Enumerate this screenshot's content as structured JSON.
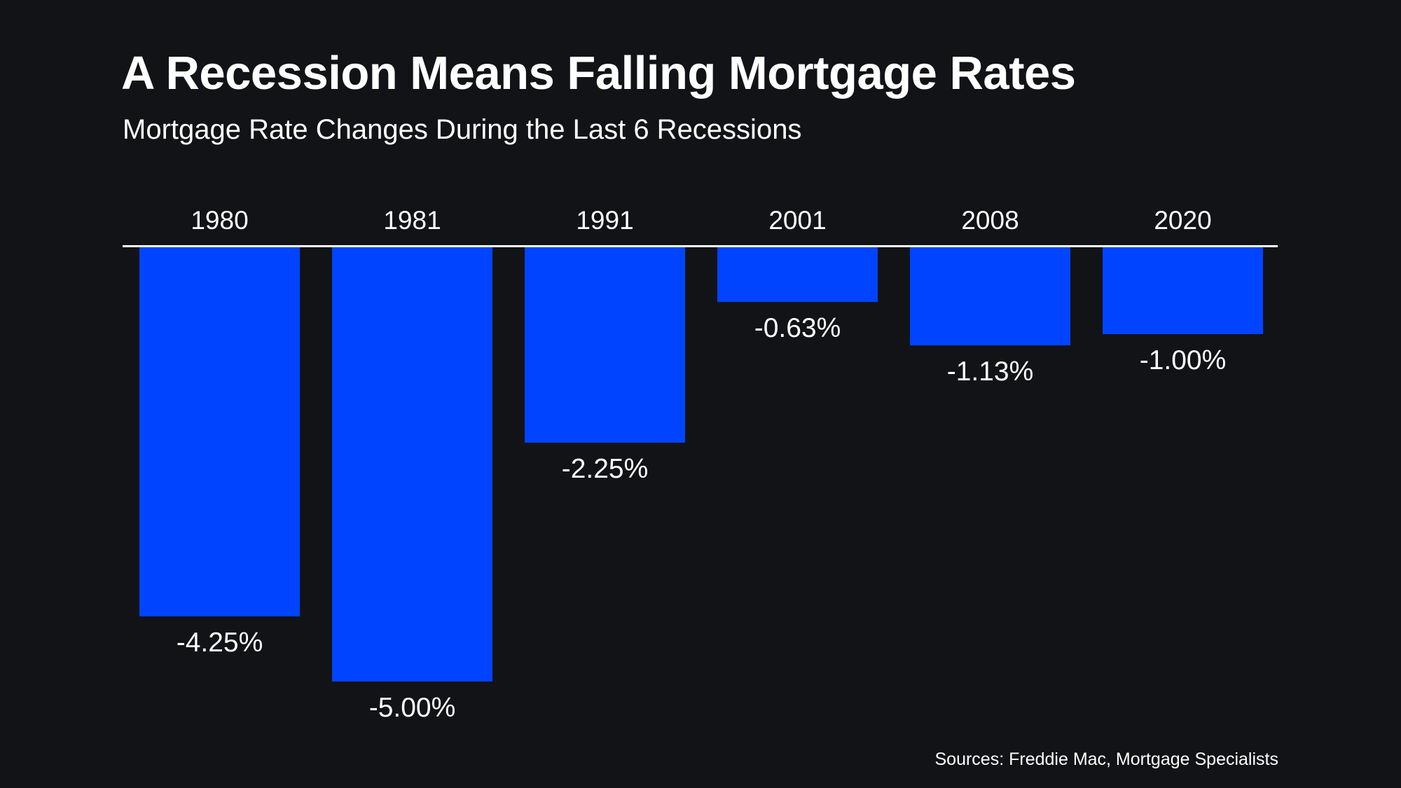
{
  "chart_data": {
    "type": "bar",
    "orientation": "vertical-negative",
    "title": "A Recession Means Falling Mortgage Rates",
    "subtitle": "Mortgage Rate Changes During the Last 6 Recessions",
    "categories": [
      "1980",
      "1981",
      "1991",
      "2001",
      "2008",
      "2020"
    ],
    "values": [
      -4.25,
      -5.0,
      -2.25,
      -0.63,
      -1.13,
      -1.0
    ],
    "value_labels": [
      "-4.25%",
      "-5.00%",
      "-2.25%",
      "-0.63%",
      "-1.13%",
      "-1.00%"
    ],
    "xlabel": "",
    "ylabel": "",
    "ylim": [
      -5.0,
      0
    ],
    "category_axis_position": "top",
    "grid": false,
    "legend": "none",
    "source": "Sources: Freddie Mac, Mortgage Specialists",
    "colors": {
      "background": "#121316",
      "bar": "#0044FF",
      "text": "#FFFFFF",
      "axis_line": "#FFFFFF"
    }
  }
}
